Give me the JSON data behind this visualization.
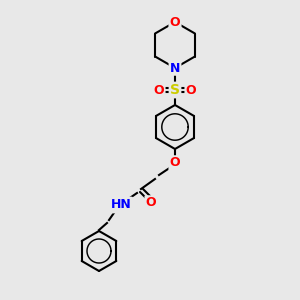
{
  "background_color": "#e8e8e8",
  "bond_color": "#000000",
  "bond_width": 1.5,
  "colors": {
    "O": "#ff0000",
    "N": "#0000ff",
    "S": "#cccc00",
    "C": "#000000",
    "H": "#5f9ea0"
  },
  "font_size": 9,
  "font_size_small": 8
}
